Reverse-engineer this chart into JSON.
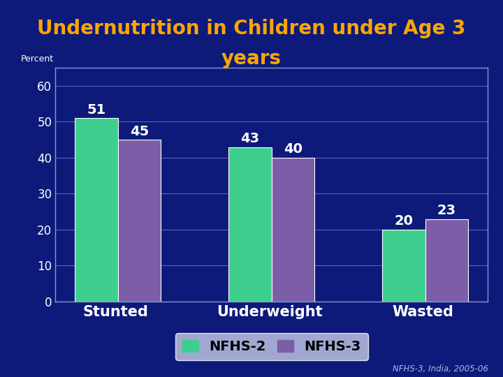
{
  "title_line1": "Undernutrition in Children under Age 3",
  "title_line2": "years",
  "title_color": "#FFA500",
  "background_color": "#0d1a7a",
  "plot_bg_color": "#0d1a7a",
  "categories": [
    "Stunted",
    "Underweight",
    "Wasted"
  ],
  "nfhs2_values": [
    51,
    43,
    20
  ],
  "nfhs3_values": [
    45,
    40,
    23
  ],
  "nfhs2_color": "#3ecf8e",
  "nfhs3_color": "#7b5ea7",
  "bar_width": 0.28,
  "ylim": [
    0,
    65
  ],
  "yticks": [
    0,
    10,
    20,
    30,
    40,
    50,
    60
  ],
  "grid_color": "#5566bb",
  "value_label_color": "#ffffff",
  "legend_labels": [
    "NFHS-2",
    "NFHS-3"
  ],
  "legend_text_color": "#000000",
  "legend_bg": "#c8cce8",
  "footnote": "NFHS-3, India, 2005-06",
  "footnote_color": "#aabbdd",
  "title_fontsize": 20,
  "axis_tick_fontsize": 12,
  "category_fontsize": 15,
  "value_fontsize": 14,
  "legend_fontsize": 14,
  "percent_fontsize": 9,
  "spine_color": "#8899cc",
  "tick_color": "#ffffff",
  "cat_label_color": "#ffffff"
}
